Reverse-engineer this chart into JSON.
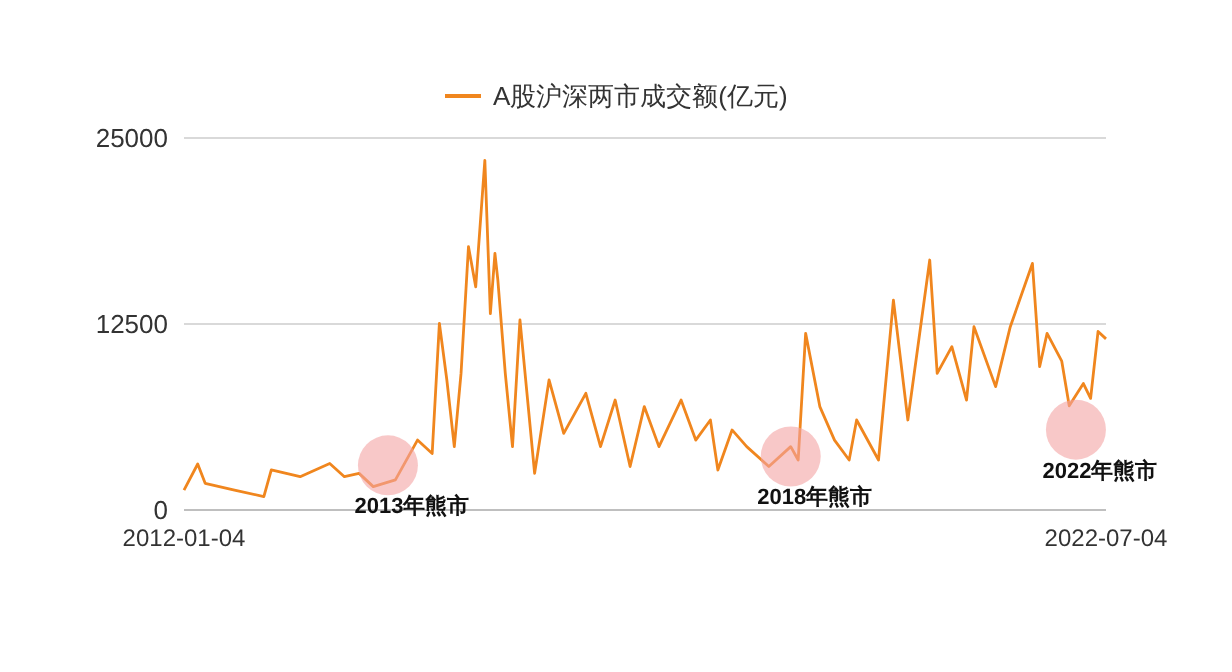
{
  "chart_data": {
    "type": "line",
    "x": [
      "2012-01-04",
      "2012-03",
      "2012-04",
      "2012-08",
      "2012-12",
      "2013-01",
      "2013-05",
      "2013-09",
      "2013-11",
      "2014-01",
      "2014-03",
      "2014-06",
      "2014-09",
      "2014-11",
      "2014-12",
      "2015-01",
      "2015-02",
      "2015-03",
      "2015-04",
      "2015-05",
      "2015-06-08",
      "2015-07-01",
      "2015-07-20",
      "2015-08",
      "2015-09",
      "2015-10",
      "2015-11",
      "2016-01",
      "2016-03",
      "2016-05",
      "2016-08",
      "2016-10",
      "2016-12",
      "2017-02",
      "2017-04",
      "2017-06",
      "2017-09",
      "2017-11",
      "2018-01",
      "2018-02",
      "2018-04",
      "2018-06",
      "2018-09",
      "2018-12",
      "2019-01",
      "2019-02",
      "2019-04",
      "2019-06",
      "2019-08",
      "2019-09",
      "2019-12",
      "2020-02",
      "2020-04",
      "2020-07",
      "2020-08",
      "2020-10",
      "2020-12",
      "2021-01",
      "2021-04",
      "2021-06",
      "2021-09",
      "2021-10",
      "2021-11",
      "2022-01",
      "2022-02",
      "2022-04",
      "2022-05",
      "2022-06",
      "2022-07-04"
    ],
    "series": [
      {
        "name": "A股沪深两市成交额(亿元)",
        "color": "#f0861e",
        "values": [
          1340,
          3090,
          1790,
          1340,
          900,
          2690,
          2240,
          3130,
          2240,
          2460,
          1570,
          2020,
          4700,
          3800,
          12540,
          8740,
          4260,
          9180,
          17700,
          15000,
          23500,
          13200,
          17240,
          15460,
          9180,
          4260,
          12770,
          2460,
          8740,
          5150,
          7840,
          4260,
          7390,
          2920,
          6950,
          4260,
          7390,
          4700,
          6050,
          2690,
          5380,
          4260,
          2920,
          4260,
          3360,
          11870,
          6950,
          4700,
          3360,
          6050,
          3360,
          14110,
          6050,
          16800,
          9180,
          10980,
          7390,
          12320,
          8290,
          12320,
          16570,
          9630,
          11870,
          10000,
          7000,
          8500,
          7500,
          12000,
          11500
        ]
      }
    ],
    "xlim": [
      "2012-01-04",
      "2022-07-04"
    ],
    "xticks": [
      {
        "value": "2012-01-04",
        "label": "2012-01-04"
      },
      {
        "value": "2022-07-04",
        "label": "2022-07-04"
      }
    ],
    "ylim": [
      0,
      25000
    ],
    "yticks": [
      0,
      12500,
      25000
    ],
    "grid": "y",
    "legend": "top",
    "annotations": [
      {
        "text": "2013年熊市",
        "x": "2014-05",
        "y": 3000
      },
      {
        "text": "2018年熊市",
        "x": "2018-12",
        "y": 3600
      },
      {
        "text": "2022年熊市",
        "x": "2022-03",
        "y": 5400
      }
    ]
  }
}
